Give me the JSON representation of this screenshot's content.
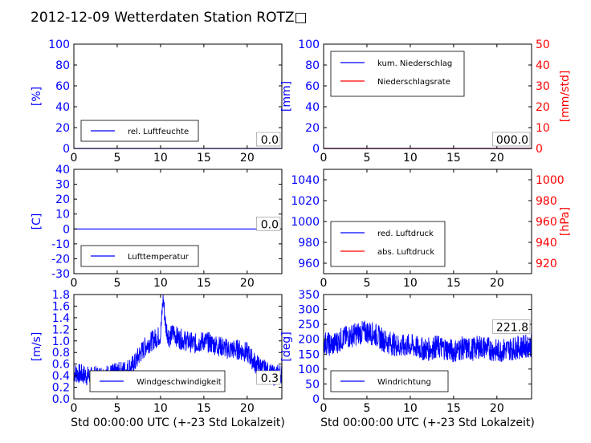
{
  "title": "2012-12-09 Wetterdaten Station ROTZ□",
  "colors": {
    "blue": "#0000ff",
    "red": "#ff0000",
    "axis": "#000000"
  },
  "chart_data": [
    {
      "id": "humidity",
      "type": "line",
      "xlim": [
        0,
        24
      ],
      "xticks": [
        0,
        5,
        10,
        15,
        20
      ],
      "ylim": [
        0,
        100
      ],
      "yticks": [
        0,
        20,
        40,
        60,
        80,
        100
      ],
      "ylabel": "[%]",
      "legend_position": "bottom-left",
      "series": [
        {
          "name": "rel. Luftfeuchte",
          "color": "#0000ff",
          "axis": "left",
          "x": [
            0,
            24
          ],
          "y": [
            0,
            0
          ]
        }
      ],
      "value_label": "0.0"
    },
    {
      "id": "precip",
      "type": "line",
      "xlim": [
        0,
        24
      ],
      "xticks": [
        0,
        5,
        10,
        15,
        20
      ],
      "ylim": [
        0,
        100
      ],
      "yticks": [
        0,
        20,
        40,
        60,
        80,
        100
      ],
      "ylabel": "[mm]",
      "ylim_right": [
        0,
        50
      ],
      "yticks_right": [
        0,
        10,
        20,
        30,
        40,
        50
      ],
      "ylabel_right": "[mm/std]",
      "legend_position": "top-left",
      "series": [
        {
          "name": "kum. Niederschlag",
          "color": "#0000ff",
          "axis": "left",
          "x": [
            0,
            24
          ],
          "y": [
            0,
            0
          ]
        },
        {
          "name": "Niederschlagsrate",
          "color": "#ff0000",
          "axis": "right",
          "x": [
            0,
            24
          ],
          "y": [
            0,
            0
          ]
        }
      ],
      "value_label": "000.0"
    },
    {
      "id": "temperature",
      "type": "line",
      "xlim": [
        0,
        24
      ],
      "xticks": [
        0,
        5,
        10,
        15,
        20
      ],
      "ylim": [
        -30,
        40
      ],
      "yticks": [
        -30,
        -20,
        -10,
        0,
        10,
        20,
        30,
        40
      ],
      "ylabel": "[C]",
      "legend_position": "bottom-left",
      "series": [
        {
          "name": "Lufttemperatur",
          "color": "#0000ff",
          "axis": "left",
          "x": [
            0,
            24
          ],
          "y": [
            0,
            0
          ]
        }
      ],
      "value_label": "0.0"
    },
    {
      "id": "pressure",
      "type": "line",
      "xlim": [
        0,
        24
      ],
      "xticks": [
        0,
        5,
        10,
        15,
        20
      ],
      "ylim": [
        950,
        1050
      ],
      "yticks": [
        960,
        980,
        1000,
        1020,
        1040
      ],
      "ylabel": "",
      "ylim_right": [
        910,
        1010
      ],
      "yticks_right": [
        920,
        940,
        960,
        980,
        1000
      ],
      "ylabel_right": "[hPa]",
      "legend_position": "bottom-left",
      "series": [
        {
          "name": "red. Luftdruck",
          "color": "#0000ff",
          "axis": "left",
          "x": [],
          "y": []
        },
        {
          "name": "abs. Luftdruck",
          "color": "#ff0000",
          "axis": "right",
          "x": [],
          "y": []
        }
      ],
      "value_label": ""
    },
    {
      "id": "wind-speed",
      "type": "line",
      "xlim": [
        0,
        24
      ],
      "xticks": [
        0,
        5,
        10,
        15,
        20
      ],
      "ylim": [
        0,
        1.8
      ],
      "yticks": [
        0.0,
        0.2,
        0.4,
        0.6,
        0.8,
        1.0,
        1.2,
        1.4,
        1.6,
        1.8
      ],
      "ylabel": "[m/s]",
      "xlabel": "Std 00:00:00 UTC (+-23 Std Lokalzeit)",
      "legend_position": "bottom-center",
      "series": [
        {
          "name": "Windgeschwindigkeit",
          "color": "#0000ff",
          "axis": "left",
          "x": [
            0,
            1,
            2,
            3,
            4,
            5,
            6,
            7,
            7.5,
            8,
            8.5,
            9,
            9.5,
            10,
            10.3,
            10.6,
            11,
            11.5,
            12,
            13,
            14,
            15,
            16,
            17,
            18,
            19,
            20,
            20.5,
            21,
            21.5,
            22,
            22.5,
            23,
            23.5,
            24
          ],
          "y": [
            0.45,
            0.42,
            0.38,
            0.4,
            0.42,
            0.45,
            0.5,
            0.6,
            0.75,
            0.85,
            0.95,
            1.0,
            1.05,
            1.1,
            1.75,
            1.25,
            1.05,
            1.15,
            1.05,
            1.0,
            0.95,
            1.0,
            0.95,
            0.9,
            0.85,
            0.85,
            0.8,
            0.7,
            0.6,
            0.55,
            0.5,
            0.45,
            0.4,
            0.42,
            0.45
          ],
          "noise": 0.18
        }
      ],
      "value_label": "0.3"
    },
    {
      "id": "wind-direction",
      "type": "line",
      "xlim": [
        0,
        24
      ],
      "xticks": [
        0,
        5,
        10,
        15,
        20
      ],
      "ylim": [
        0,
        350
      ],
      "yticks": [
        0,
        50,
        100,
        150,
        200,
        250,
        300,
        350
      ],
      "ylabel": "[deg]",
      "xlabel": "Std 00:00:00 UTC (+-23 Std Lokalzeit)",
      "legend_position": "bottom-left",
      "series": [
        {
          "name": "Windrichtung",
          "color": "#0000ff",
          "axis": "left",
          "x": [
            0,
            1,
            2,
            3,
            4,
            5,
            6,
            7,
            8,
            9,
            10,
            11,
            12,
            13,
            14,
            15,
            16,
            17,
            18,
            19,
            20,
            21,
            22,
            23,
            24
          ],
          "y": [
            190,
            180,
            200,
            210,
            220,
            225,
            215,
            195,
            185,
            175,
            180,
            170,
            165,
            175,
            170,
            160,
            170,
            165,
            175,
            170,
            160,
            165,
            170,
            175,
            180
          ],
          "noise": 40
        }
      ],
      "value_label": "221.8"
    }
  ]
}
